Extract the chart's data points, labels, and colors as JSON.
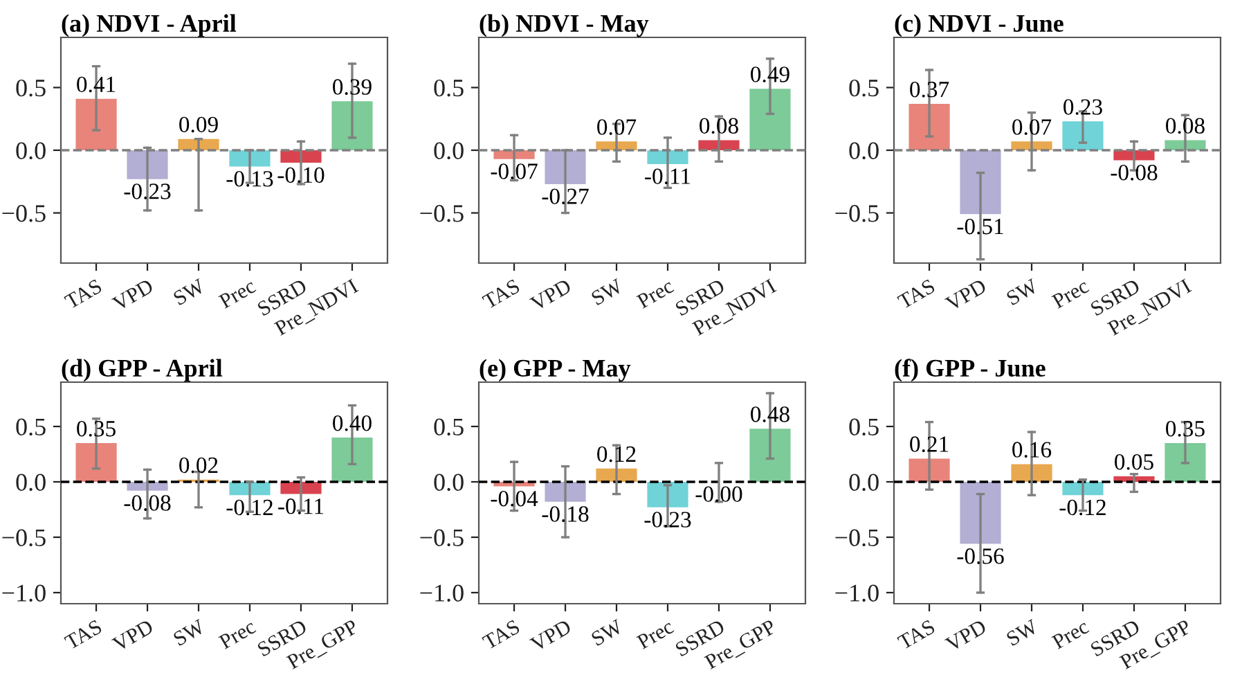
{
  "chart_data": [
    {
      "type": "bar",
      "title": "(a) NDVI - April",
      "categories": [
        "TAS",
        "VPD",
        "SW",
        "Prec",
        "SSRD",
        "Pre_NDVI"
      ],
      "values": [
        0.41,
        -0.23,
        0.09,
        -0.13,
        -0.1,
        0.39
      ],
      "value_labels": [
        "0.41",
        "-0.23",
        "0.09",
        "-0.13",
        "-0.10",
        "0.39"
      ],
      "colors": [
        "#e8847a",
        "#b3aed3",
        "#e8a84f",
        "#6fd3d8",
        "#d9434f",
        "#7ccb98"
      ],
      "errors": [
        [
          0.16,
          0.67
        ],
        [
          -0.48,
          0.02
        ],
        [
          -0.48,
          0.09
        ],
        [
          -0.26,
          0.0
        ],
        [
          -0.27,
          0.07
        ],
        [
          0.1,
          0.69
        ]
      ],
      "ylim": [
        -0.9,
        0.9
      ],
      "yticks": [
        {
          "value": -0.5,
          "label": "−0.5"
        },
        {
          "value": 0,
          "label": "0.0"
        },
        {
          "value": 0.5,
          "label": "0.5"
        }
      ],
      "ref_lines": [
        {
          "axis": "y",
          "value": 0,
          "color": "#808080",
          "line_style": "dashed"
        }
      ],
      "grid": false
    },
    {
      "type": "bar",
      "title": "(b) NDVI - May",
      "categories": [
        "TAS",
        "VPD",
        "SW",
        "Prec",
        "SSRD",
        "Pre_NDVI"
      ],
      "values": [
        -0.07,
        -0.27,
        0.07,
        -0.11,
        0.08,
        0.49
      ],
      "value_labels": [
        "-0.07",
        "-0.27",
        "0.07",
        "-0.11",
        "0.08",
        "0.49"
      ],
      "colors": [
        "#e8847a",
        "#b3aed3",
        "#e8a84f",
        "#6fd3d8",
        "#d9434f",
        "#7ccb98"
      ],
      "errors": [
        [
          -0.24,
          0.12
        ],
        [
          -0.5,
          0.0
        ],
        [
          -0.09,
          0.21
        ],
        [
          -0.3,
          0.1
        ],
        [
          -0.09,
          0.27
        ],
        [
          0.29,
          0.73
        ]
      ],
      "ylim": [
        -0.9,
        0.9
      ],
      "yticks": [
        {
          "value": -0.5,
          "label": "−0.5"
        },
        {
          "value": 0,
          "label": "0.0"
        },
        {
          "value": 0.5,
          "label": "0.5"
        }
      ],
      "ref_lines": [
        {
          "axis": "y",
          "value": 0,
          "color": "#808080",
          "line_style": "dashed"
        }
      ],
      "grid": false
    },
    {
      "type": "bar",
      "title": "(c) NDVI - June",
      "categories": [
        "TAS",
        "VPD",
        "SW",
        "Prec",
        "SSRD",
        "Pre_NDVI"
      ],
      "values": [
        0.37,
        -0.51,
        0.07,
        0.23,
        -0.08,
        0.08
      ],
      "value_labels": [
        "0.37",
        "-0.51",
        "0.07",
        "0.23",
        "-0.08",
        "0.08"
      ],
      "colors": [
        "#e8847a",
        "#b3aed3",
        "#e8a84f",
        "#6fd3d8",
        "#d9434f",
        "#7ccb98"
      ],
      "errors": [
        [
          0.11,
          0.64
        ],
        [
          -0.87,
          -0.18
        ],
        [
          -0.16,
          0.3
        ],
        [
          0.06,
          0.31
        ],
        [
          -0.16,
          0.07
        ],
        [
          -0.09,
          0.28
        ]
      ],
      "ylim": [
        -0.9,
        0.9
      ],
      "yticks": [
        {
          "value": -0.5,
          "label": "−0.5"
        },
        {
          "value": 0,
          "label": "0.0"
        },
        {
          "value": 0.5,
          "label": "0.5"
        }
      ],
      "ref_lines": [
        {
          "axis": "y",
          "value": 0,
          "color": "#808080",
          "line_style": "dashed"
        }
      ],
      "grid": false
    },
    {
      "type": "bar",
      "title": "(d) GPP - April",
      "categories": [
        "TAS",
        "VPD",
        "SW",
        "Prec",
        "SSRD",
        "Pre_GPP"
      ],
      "values": [
        0.35,
        -0.08,
        0.02,
        -0.12,
        -0.11,
        0.4
      ],
      "value_labels": [
        "0.35",
        "-0.08",
        "0.02",
        "-0.12",
        "-0.11",
        "0.40"
      ],
      "colors": [
        "#e8847a",
        "#b3aed3",
        "#e8a84f",
        "#6fd3d8",
        "#d9434f",
        "#7ccb98"
      ],
      "errors": [
        [
          0.12,
          0.57
        ],
        [
          -0.33,
          0.11
        ],
        [
          -0.23,
          0.09
        ],
        [
          -0.27,
          0.0
        ],
        [
          -0.26,
          0.04
        ],
        [
          0.16,
          0.69
        ]
      ],
      "ylim": [
        -1.1,
        0.9
      ],
      "yticks": [
        {
          "value": -1.0,
          "label": "−1.0"
        },
        {
          "value": -0.5,
          "label": "−0.5"
        },
        {
          "value": 0,
          "label": "0.0"
        },
        {
          "value": 0.5,
          "label": "0.5"
        }
      ],
      "ref_lines": [
        {
          "axis": "y",
          "value": 0,
          "color": "#000000",
          "line_style": "dashed"
        }
      ],
      "grid": false
    },
    {
      "type": "bar",
      "title": "(e) GPP - May",
      "categories": [
        "TAS",
        "VPD",
        "SW",
        "Prec",
        "SSRD",
        "Pre_GPP"
      ],
      "values": [
        -0.04,
        -0.18,
        0.12,
        -0.23,
        0,
        0.48
      ],
      "value_labels": [
        "-0.04",
        "-0.18",
        "0.12",
        "-0.23",
        "-0.00",
        "0.48"
      ],
      "colors": [
        "#e8847a",
        "#b3aed3",
        "#e8a84f",
        "#6fd3d8",
        "#d9434f",
        "#7ccb98"
      ],
      "errors": [
        [
          -0.26,
          0.18
        ],
        [
          -0.5,
          0.14
        ],
        [
          -0.11,
          0.33
        ],
        [
          -0.4,
          -0.03
        ],
        [
          -0.18,
          0.17
        ],
        [
          0.21,
          0.8
        ]
      ],
      "ylim": [
        -1.1,
        0.9
      ],
      "yticks": [
        {
          "value": -1.0,
          "label": "−1.0"
        },
        {
          "value": -0.5,
          "label": "−0.5"
        },
        {
          "value": 0,
          "label": "0.0"
        },
        {
          "value": 0.5,
          "label": "0.5"
        }
      ],
      "ref_lines": [
        {
          "axis": "y",
          "value": 0,
          "color": "#000000",
          "line_style": "dashed"
        }
      ],
      "grid": false
    },
    {
      "type": "bar",
      "title": "(f) GPP - June",
      "categories": [
        "TAS",
        "VPD",
        "SW",
        "Prec",
        "SSRD",
        "Pre_GPP"
      ],
      "values": [
        0.21,
        -0.56,
        0.16,
        -0.12,
        0.05,
        0.35
      ],
      "value_labels": [
        "0.21",
        "-0.56",
        "0.16",
        "-0.12",
        "0.05",
        "0.35"
      ],
      "colors": [
        "#e8847a",
        "#b3aed3",
        "#e8a84f",
        "#6fd3d8",
        "#d9434f",
        "#7ccb98"
      ],
      "errors": [
        [
          -0.07,
          0.54
        ],
        [
          -1.0,
          -0.11
        ],
        [
          -0.12,
          0.45
        ],
        [
          -0.26,
          0.02
        ],
        [
          -0.09,
          0.07
        ],
        [
          0.17,
          0.54
        ]
      ],
      "ylim": [
        -1.1,
        0.9
      ],
      "yticks": [
        {
          "value": -1.0,
          "label": "−1.0"
        },
        {
          "value": -0.5,
          "label": "−0.5"
        },
        {
          "value": 0,
          "label": "0.0"
        },
        {
          "value": 0.5,
          "label": "0.5"
        }
      ],
      "ref_lines": [
        {
          "axis": "y",
          "value": 0,
          "color": "#000000",
          "line_style": "dashed"
        }
      ],
      "grid": false
    }
  ]
}
